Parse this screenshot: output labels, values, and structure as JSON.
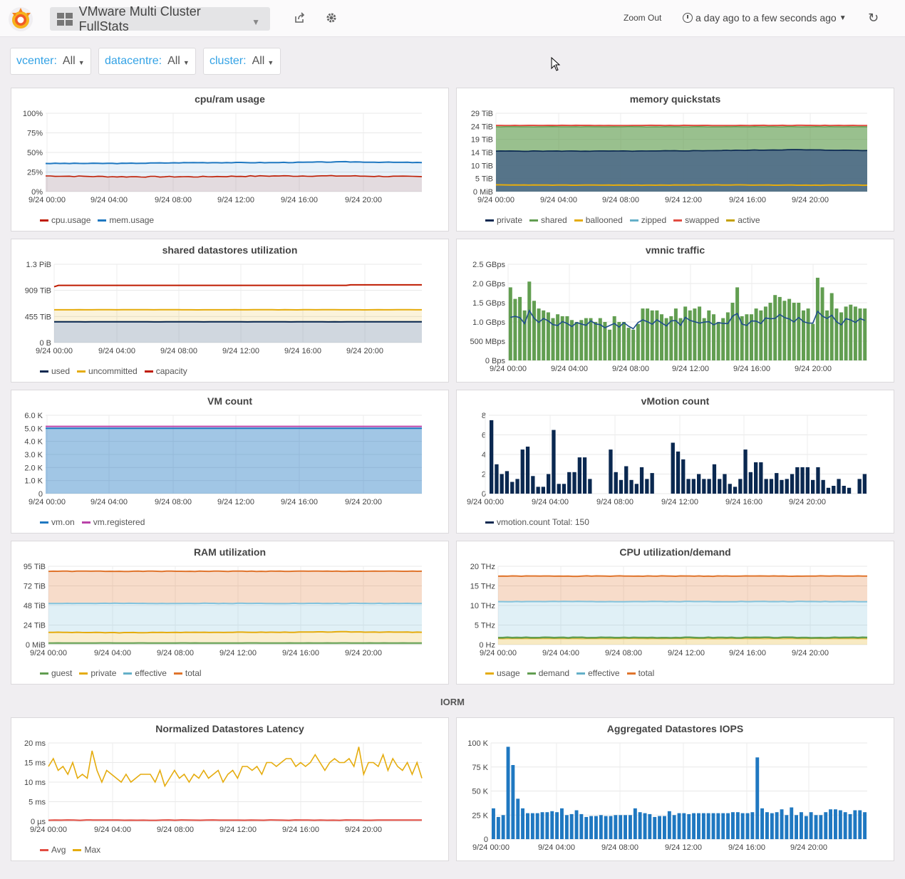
{
  "topbar": {
    "dashboard_title": "VMware Multi Cluster FullStats",
    "zoom_out_label": "Zoom Out",
    "time_range": "a day ago to a few seconds ago"
  },
  "variables": [
    {
      "label": "vcenter:",
      "value": "All"
    },
    {
      "label": "datacentre:",
      "value": "All"
    },
    {
      "label": "cluster:",
      "value": "All"
    }
  ],
  "row_title": "IORM",
  "x_ticks": [
    "9/24 00:00",
    "9/24 04:00",
    "9/24 08:00",
    "9/24 12:00",
    "9/24 16:00",
    "9/24 20:00"
  ],
  "colors": {
    "red": "#bf1b00",
    "blue": "#1f78c1",
    "green": "#629e51",
    "yellow": "#e5ac0e",
    "navy": "#0a2850",
    "orange": "#e0752d",
    "lightblue": "#64b0c8",
    "pink": "#ba43a9",
    "lightgreen": "#7eb26d",
    "coral": "#ef843c"
  },
  "panels": {
    "cpu_ram": {
      "title": "cpu/ram usage",
      "yticks": [
        "100%",
        "75%",
        "50%",
        "25%",
        "0%"
      ],
      "legend": [
        {
          "name": "cpu.usage",
          "color": "#bf1b00"
        },
        {
          "name": "mem.usage",
          "color": "#1f78c1"
        }
      ]
    },
    "memory_quickstats": {
      "title": "memory quickstats",
      "yticks": [
        "29 TiB",
        "24 TiB",
        "19 TiB",
        "14 TiB",
        "10 TiB",
        "5 TiB",
        "0 MiB"
      ],
      "legend": [
        {
          "name": "private",
          "color": "#0a2850"
        },
        {
          "name": "shared",
          "color": "#629e51"
        },
        {
          "name": "ballooned",
          "color": "#e5ac0e"
        },
        {
          "name": "zipped",
          "color": "#64b0c8"
        },
        {
          "name": "swapped",
          "color": "#e24d42"
        },
        {
          "name": "active",
          "color": "#c4a000"
        }
      ]
    },
    "shared_datastores": {
      "title": "shared datastores utilization",
      "yticks": [
        "1.3 PiB",
        "909 TiB",
        "455 TiB",
        "0 B"
      ],
      "legend": [
        {
          "name": "used",
          "color": "#0a2850"
        },
        {
          "name": "uncommitted",
          "color": "#e5ac0e"
        },
        {
          "name": "capacity",
          "color": "#bf1b00"
        }
      ]
    },
    "vmnic": {
      "title": "vmnic traffic",
      "yticks": [
        "2.5 GBps",
        "2.0 GBps",
        "1.5 GBps",
        "1.0 GBps",
        "500 MBps",
        "0 Bps"
      ]
    },
    "vm_count": {
      "title": "VM count",
      "yticks": [
        "6.0 K",
        "5.0 K",
        "4.0 K",
        "3.0 K",
        "2.0 K",
        "1.0 K",
        "0"
      ],
      "legend": [
        {
          "name": "vm.on",
          "color": "#1f78c1"
        },
        {
          "name": "vm.registered",
          "color": "#ba43a9"
        }
      ]
    },
    "vmotion": {
      "title": "vMotion count",
      "yticks": [
        "8",
        "6",
        "4",
        "2",
        "0"
      ],
      "legend": [
        {
          "name": "vmotion.count  Total: 150",
          "color": "#0a2850"
        }
      ]
    },
    "ram_util": {
      "title": "RAM utilization",
      "yticks": [
        "95 TiB",
        "72 TiB",
        "48 TiB",
        "24 TiB",
        "0 MiB"
      ],
      "legend": [
        {
          "name": "guest",
          "color": "#629e51"
        },
        {
          "name": "private",
          "color": "#e5ac0e"
        },
        {
          "name": "effective",
          "color": "#64b0c8"
        },
        {
          "name": "total",
          "color": "#e0752d"
        }
      ]
    },
    "cpu_util": {
      "title": "CPU utilization/demand",
      "yticks": [
        "20 THz",
        "15 THz",
        "10 THz",
        "5 THz",
        "0 Hz"
      ],
      "legend": [
        {
          "name": "usage",
          "color": "#e5ac0e"
        },
        {
          "name": "demand",
          "color": "#629e51"
        },
        {
          "name": "effective",
          "color": "#64b0c8"
        },
        {
          "name": "total",
          "color": "#e0752d"
        }
      ]
    },
    "latency": {
      "title": "Normalized Datastores Latency",
      "yticks": [
        "20 ms",
        "15 ms",
        "10 ms",
        "5 ms",
        "0 µs"
      ],
      "legend": [
        {
          "name": "Avg",
          "color": "#e24d42"
        },
        {
          "name": "Max",
          "color": "#e5ac0e"
        }
      ]
    },
    "iops": {
      "title": "Aggregated Datastores IOPS",
      "yticks": [
        "100 K",
        "75 K",
        "50 K",
        "25 K",
        "0"
      ]
    }
  },
  "chart_data": [
    {
      "type": "area",
      "title": "cpu/ram usage",
      "ylim": [
        0,
        100
      ],
      "x": [
        "9/24 00:00",
        "9/24 04:00",
        "9/24 08:00",
        "9/24 12:00",
        "9/24 16:00",
        "9/24 20:00"
      ],
      "series": [
        {
          "name": "cpu.usage",
          "values": [
            20,
            19,
            19,
            20,
            20,
            19
          ]
        },
        {
          "name": "mem.usage",
          "values": [
            36,
            36,
            37,
            37,
            38,
            37
          ]
        }
      ]
    },
    {
      "type": "area",
      "title": "memory quickstats",
      "x": [
        "9/24 00:00",
        "9/24 04:00",
        "9/24 08:00",
        "9/24 12:00",
        "9/24 16:00",
        "9/24 20:00"
      ],
      "series": [
        {
          "name": "private",
          "values": [
            15,
            15,
            15,
            15.2,
            15.5,
            15.2
          ]
        },
        {
          "name": "shared",
          "values": [
            24,
            24,
            24,
            24,
            24,
            24
          ]
        },
        {
          "name": "ballooned",
          "values": [
            2.5,
            2.4,
            2.4,
            2.5,
            2.4,
            2.4
          ]
        },
        {
          "name": "swapped",
          "values": [
            24.5,
            24.5,
            24.5,
            24.5,
            24.5,
            24.5
          ]
        }
      ]
    },
    {
      "type": "area",
      "title": "shared datastores utilization",
      "x": [
        "9/24 00:00",
        "9/24 04:00",
        "9/24 08:00",
        "9/24 12:00",
        "9/24 16:00",
        "9/24 20:00"
      ],
      "series": [
        {
          "name": "used",
          "values": [
            380,
            380,
            380,
            380,
            380,
            380
          ]
        },
        {
          "name": "uncommitted",
          "values": [
            600,
            600,
            600,
            600,
            600,
            600
          ]
        },
        {
          "name": "capacity",
          "values": [
            1050,
            1050,
            1050,
            1050,
            1050,
            1060
          ]
        }
      ]
    },
    {
      "type": "bar",
      "title": "vmnic traffic",
      "values_gbps": [
        1.9,
        1.6,
        1.65,
        1.3,
        2.05,
        1.55,
        1.35,
        1.3,
        1.25,
        1.1,
        1.2,
        1.15,
        1.15,
        1.05,
        1.0,
        1.05,
        1.1,
        1.1,
        1.0,
        1.1,
        1.0,
        0.8,
        1.15,
        1.0,
        1.0,
        0.85,
        0.8,
        0.95,
        1.35,
        1.35,
        1.3,
        1.3,
        1.2,
        1.1,
        1.15,
        1.35,
        1.1,
        1.4,
        1.3,
        1.35,
        1.4,
        1.1,
        1.3,
        1.2,
        1.0,
        1.1,
        1.25,
        1.5,
        1.9,
        1.15,
        1.2,
        1.2,
        1.35,
        1.3,
        1.4,
        1.5,
        1.7,
        1.65,
        1.55,
        1.6,
        1.5,
        1.5,
        1.3,
        1.35,
        0.95,
        2.15,
        1.9,
        1.3,
        1.75,
        1.35,
        1.25,
        1.4,
        1.45,
        1.4,
        1.35,
        1.35
      ]
    },
    {
      "type": "area",
      "title": "VM count",
      "series": [
        {
          "name": "vm.on",
          "values": [
            5000,
            5000,
            5000,
            5000,
            5000,
            5000
          ]
        },
        {
          "name": "vm.registered",
          "values": [
            5150,
            5150,
            5150,
            5150,
            5150,
            5150
          ]
        }
      ]
    },
    {
      "type": "bar",
      "title": "vMotion count",
      "values": [
        7.5,
        3,
        2,
        2.3,
        1.2,
        1.5,
        4.5,
        4.8,
        1.8,
        0.7,
        0.7,
        2,
        6.5,
        1,
        1,
        2.2,
        2.2,
        3.7,
        3.7,
        1.5,
        0,
        0,
        0,
        4.5,
        2.2,
        1.4,
        2.8,
        1.4,
        1,
        2.7,
        1.5,
        2.1,
        0,
        0,
        0,
        5.2,
        4.3,
        3.5,
        1.5,
        1.5,
        2,
        1.5,
        1.5,
        3,
        1.5,
        2,
        1,
        0.7,
        1.5,
        4.5,
        2.2,
        3.2,
        3.2,
        1.5,
        1.5,
        2.1,
        1.4,
        1.5,
        2,
        2.7,
        2.7,
        2.7,
        1.4,
        2.7,
        1.4,
        0.6,
        0.8,
        1.5,
        0.8,
        0.6,
        0,
        1.5,
        2
      ]
    },
    {
      "type": "area",
      "title": "RAM utilization",
      "series": [
        {
          "name": "guest",
          "values": [
            2,
            2,
            2,
            2,
            2,
            2
          ]
        },
        {
          "name": "private",
          "values": [
            15,
            14.5,
            15,
            15,
            15.5,
            15
          ]
        },
        {
          "name": "effective",
          "values": [
            50,
            50,
            50,
            50,
            50,
            50
          ]
        },
        {
          "name": "total",
          "values": [
            89,
            89,
            89,
            89,
            89,
            89
          ]
        }
      ]
    },
    {
      "type": "area",
      "title": "CPU utilization/demand",
      "series": [
        {
          "name": "usage",
          "values": [
            1.5,
            1.5,
            1.5,
            1.5,
            1.5,
            1.5
          ]
        },
        {
          "name": "demand",
          "values": [
            1.8,
            1.8,
            1.8,
            1.8,
            1.8,
            1.8
          ]
        },
        {
          "name": "effective",
          "values": [
            11,
            11,
            11,
            11,
            11,
            11
          ]
        },
        {
          "name": "total",
          "values": [
            17.5,
            17.5,
            17.5,
            17.5,
            17.5,
            17.5
          ]
        }
      ]
    },
    {
      "type": "line",
      "title": "Normalized Datastores Latency",
      "series": [
        {
          "name": "Avg",
          "values": [
            0.3,
            0.3,
            0.3,
            0.3,
            0.3,
            0.3
          ]
        },
        {
          "name": "Max",
          "values": [
            14,
            16,
            13,
            14,
            12,
            15,
            11,
            12,
            11,
            18,
            13,
            10,
            13,
            12,
            11,
            10,
            12,
            10,
            11,
            12,
            12,
            12,
            10,
            13,
            9,
            11,
            13,
            11,
            12,
            10,
            12,
            11,
            13,
            11,
            12,
            13,
            10,
            12,
            13,
            11,
            14,
            14,
            13,
            14,
            12,
            15,
            15,
            14,
            15,
            16,
            16,
            14,
            15,
            14,
            15,
            17,
            15,
            13,
            15,
            16,
            15,
            15,
            16,
            14,
            19,
            12,
            15,
            15,
            14,
            17,
            13,
            16,
            14,
            13,
            15,
            12,
            15,
            11
          ]
        }
      ]
    },
    {
      "type": "bar",
      "title": "Aggregated Datastores IOPS",
      "values": [
        32,
        23,
        25,
        96,
        77,
        42,
        32,
        27,
        27,
        27,
        28,
        28,
        29,
        28,
        32,
        25,
        26,
        30,
        26,
        23,
        24,
        24,
        25,
        24,
        24,
        25,
        25,
        25,
        25,
        32,
        28,
        27,
        26,
        23,
        24,
        24,
        29,
        25,
        27,
        27,
        26,
        27,
        27,
        27,
        27,
        27,
        27,
        27,
        27,
        28,
        28,
        27,
        27,
        28,
        85,
        32,
        28,
        27,
        28,
        31,
        25,
        33,
        25,
        28,
        24,
        28,
        25,
        25,
        28,
        31,
        31,
        30,
        28,
        26,
        30,
        30,
        28
      ]
    }
  ]
}
